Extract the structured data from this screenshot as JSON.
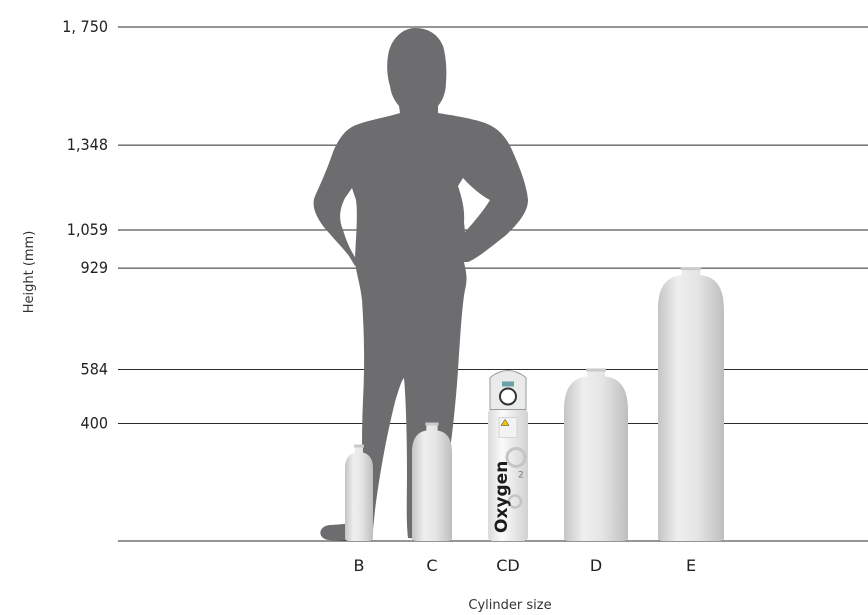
{
  "chart_data": {
    "type": "bar",
    "ylabel": "Height (mm)",
    "xlabel": "Cylinder size",
    "ylim": [
      0,
      1750
    ],
    "y_ticks": [
      {
        "value": 400,
        "label": "400"
      },
      {
        "value": 584,
        "label": "584"
      },
      {
        "value": 929,
        "label": "929"
      },
      {
        "value": 1059,
        "label": "1,059"
      },
      {
        "value": 1348,
        "label": "1,348"
      },
      {
        "value": 1750,
        "label": "1, 750"
      }
    ],
    "categories": [
      "B",
      "C",
      "CD",
      "D",
      "E"
    ],
    "values": [
      325,
      400,
      584,
      584,
      929
    ],
    "reference_figure": {
      "value": 1750,
      "label": "human silhouette"
    },
    "cd_cylinder_text": "Oxygen",
    "cd_cylinder_symbol": "2",
    "colors": {
      "silhouette": "#6d6d6f",
      "cylinder": "#e8e9e8",
      "cylinder_shade": "#c9cac9",
      "grid": "#2b2b2b"
    },
    "grid": true
  }
}
